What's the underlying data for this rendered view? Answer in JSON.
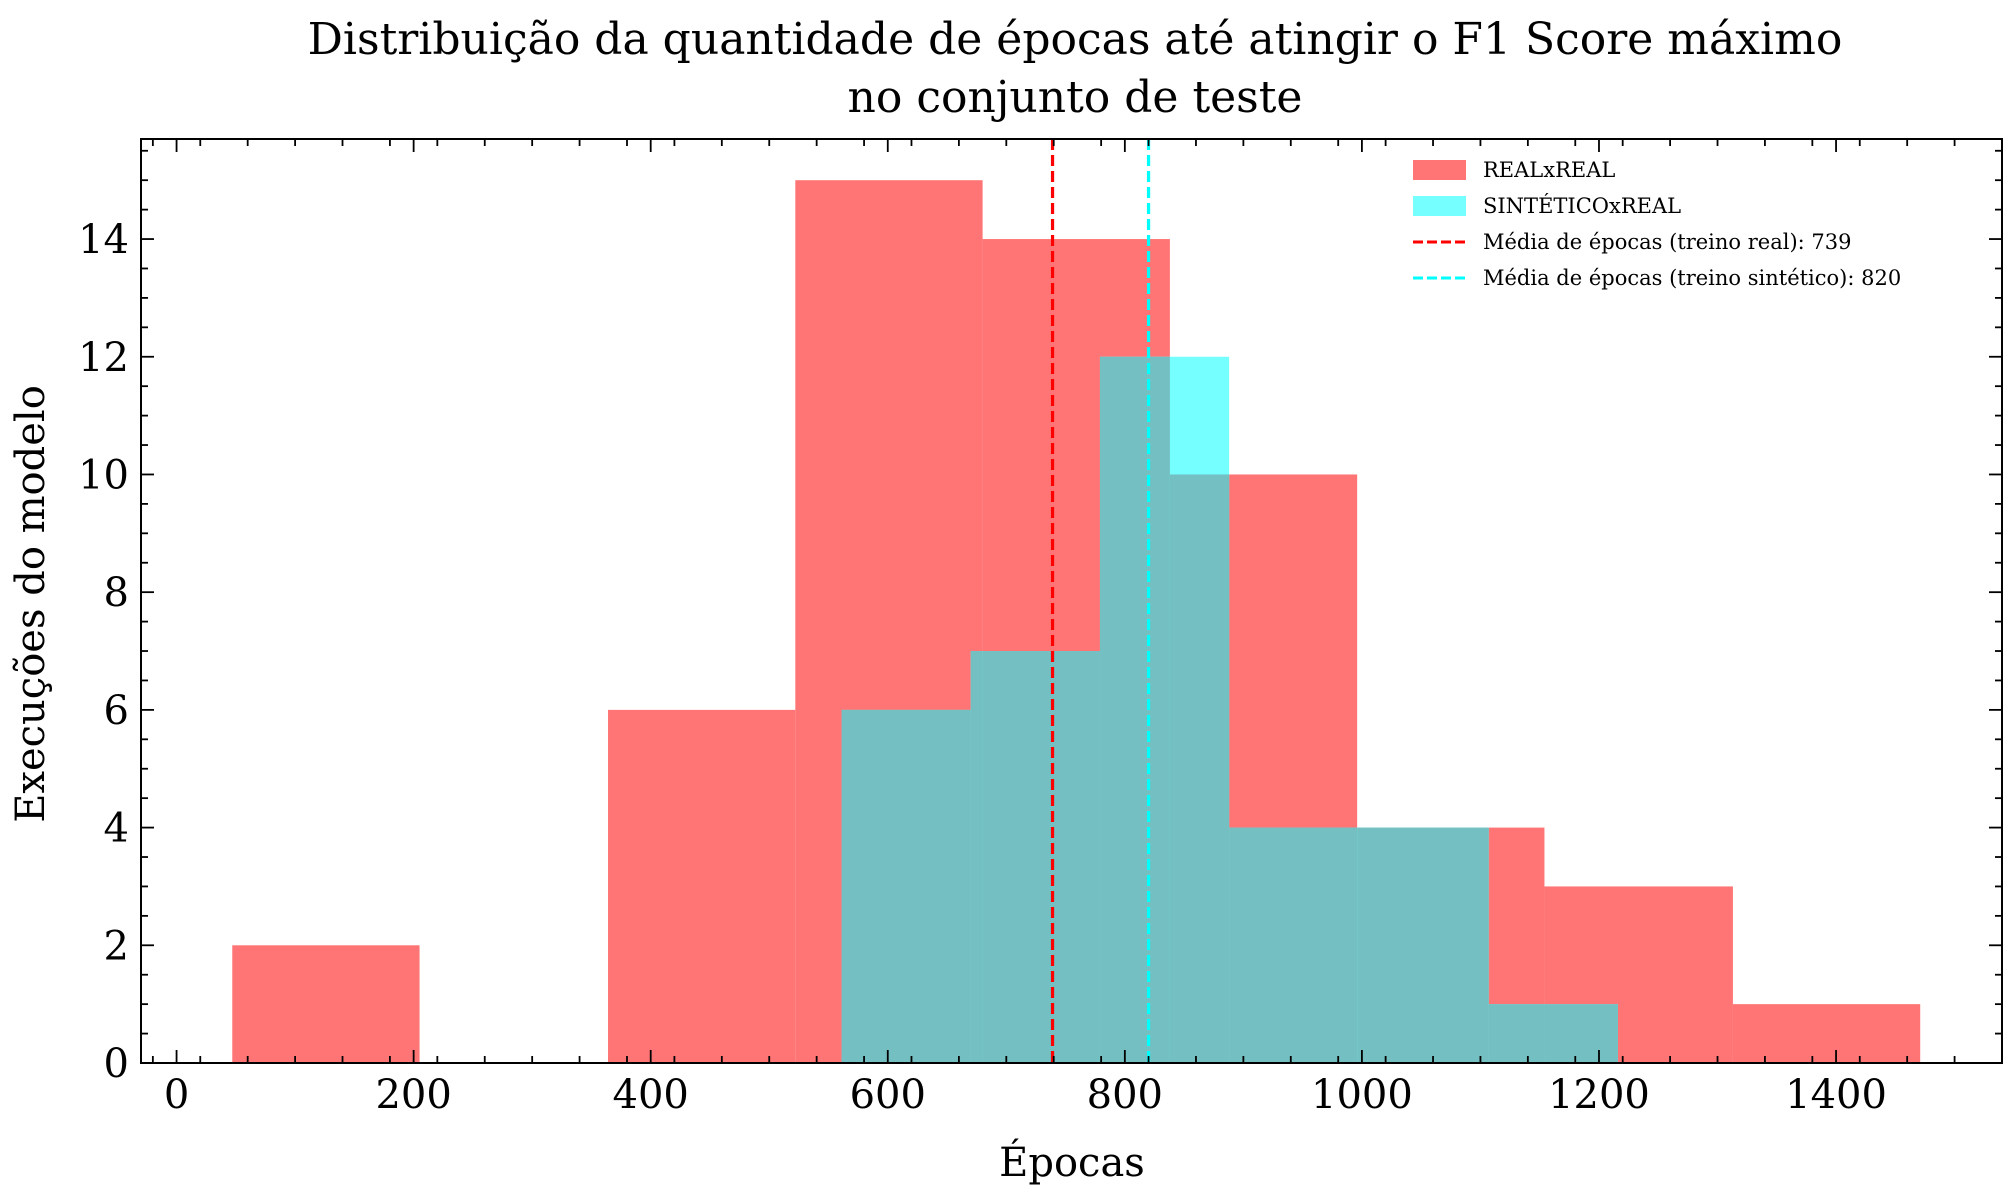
{
  "chart_data": {
    "type": "histogram",
    "title_lines": [
      "Distribuição da quantidade de épocas até atingir o F1 Score máximo",
      "no conjunto de teste"
    ],
    "xlabel": "Épocas",
    "ylabel": "Execuções do modelo",
    "xlim": [
      -30,
      1540
    ],
    "ylim": [
      0,
      15.7
    ],
    "x_ticks": [
      0,
      200,
      400,
      600,
      800,
      1000,
      1200,
      1400
    ],
    "x_tick_labels": [
      "0",
      "200",
      "400",
      "600",
      "800",
      "1000",
      "1200",
      "1400"
    ],
    "y_ticks": [
      0,
      2,
      4,
      6,
      8,
      10,
      12,
      14
    ],
    "y_tick_labels": [
      "0",
      "2",
      "4",
      "6",
      "8",
      "10",
      "12",
      "14"
    ],
    "series": [
      {
        "name": "REALxREAL",
        "color": "#ff7575",
        "bins": [
          {
            "x0": 47,
            "x1": 205,
            "count": 2
          },
          {
            "x0": 205,
            "x1": 364,
            "count": 0
          },
          {
            "x0": 364,
            "x1": 522,
            "count": 6
          },
          {
            "x0": 522,
            "x1": 680,
            "count": 15
          },
          {
            "x0": 680,
            "x1": 838,
            "count": 14
          },
          {
            "x0": 838,
            "x1": 996,
            "count": 10
          },
          {
            "x0": 996,
            "x1": 1154,
            "count": 4
          },
          {
            "x0": 1154,
            "x1": 1313,
            "count": 3
          },
          {
            "x0": 1313,
            "x1": 1471,
            "count": 1
          }
        ]
      },
      {
        "name": "SINTÉTICOxREAL",
        "color": "#75ffff",
        "bins": [
          {
            "x0": 561,
            "x1": 670,
            "count": 6
          },
          {
            "x0": 670,
            "x1": 779,
            "count": 7
          },
          {
            "x0": 779,
            "x1": 888,
            "count": 12
          },
          {
            "x0": 888,
            "x1": 998,
            "count": 4
          },
          {
            "x0": 998,
            "x1": 1107,
            "count": 4
          },
          {
            "x0": 1107,
            "x1": 1216,
            "count": 1
          }
        ]
      }
    ],
    "overlap_color": "#74bfc1",
    "reference_lines": [
      {
        "name": "Média de épocas (treino real): 739",
        "x": 739,
        "color": "#ff0000",
        "style": "dashed"
      },
      {
        "name": "Média de épocas (treino sintético): 820",
        "x": 820,
        "color": "#00ffff",
        "style": "dashed"
      }
    ],
    "legend": {
      "placement": "top-right"
    },
    "grid": false
  }
}
